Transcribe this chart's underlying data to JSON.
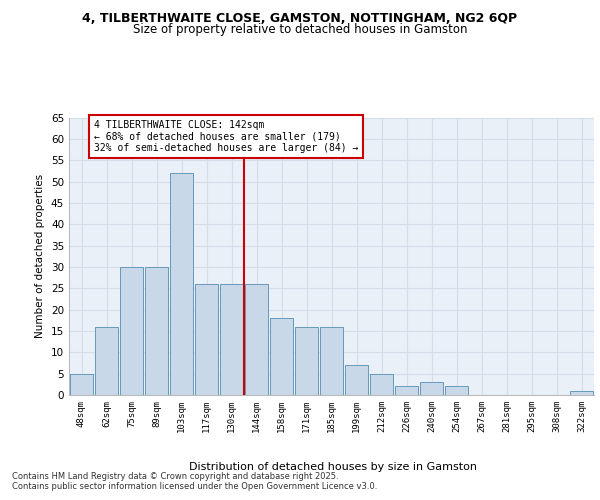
{
  "title1": "4, TILBERTHWAITE CLOSE, GAMSTON, NOTTINGHAM, NG2 6QP",
  "title2": "Size of property relative to detached houses in Gamston",
  "xlabel": "Distribution of detached houses by size in Gamston",
  "ylabel": "Number of detached properties",
  "categories": [
    "48sqm",
    "62sqm",
    "75sqm",
    "89sqm",
    "103sqm",
    "117sqm",
    "130sqm",
    "144sqm",
    "158sqm",
    "171sqm",
    "185sqm",
    "199sqm",
    "212sqm",
    "226sqm",
    "240sqm",
    "254sqm",
    "267sqm",
    "281sqm",
    "295sqm",
    "308sqm",
    "322sqm"
  ],
  "values": [
    5,
    16,
    30,
    30,
    52,
    26,
    26,
    26,
    18,
    16,
    16,
    7,
    5,
    2,
    3,
    2,
    0,
    0,
    0,
    0,
    1
  ],
  "bar_color": "#c8d8e8",
  "bar_edge_color": "#6699bb",
  "redline_index": 6,
  "annotation_line1": "4 TILBERTHWAITE CLOSE: 142sqm",
  "annotation_line2": "← 68% of detached houses are smaller (179)",
  "annotation_line3": "32% of semi-detached houses are larger (84) →",
  "annotation_box_color": "#ffffff",
  "annotation_box_edge": "#cc0000",
  "redline_color": "#cc0000",
  "ylim": [
    0,
    65
  ],
  "yticks": [
    0,
    5,
    10,
    15,
    20,
    25,
    30,
    35,
    40,
    45,
    50,
    55,
    60,
    65
  ],
  "grid_color": "#d4dde8",
  "bg_color": "#eaf0f8",
  "footer1": "Contains HM Land Registry data © Crown copyright and database right 2025.",
  "footer2": "Contains public sector information licensed under the Open Government Licence v3.0."
}
